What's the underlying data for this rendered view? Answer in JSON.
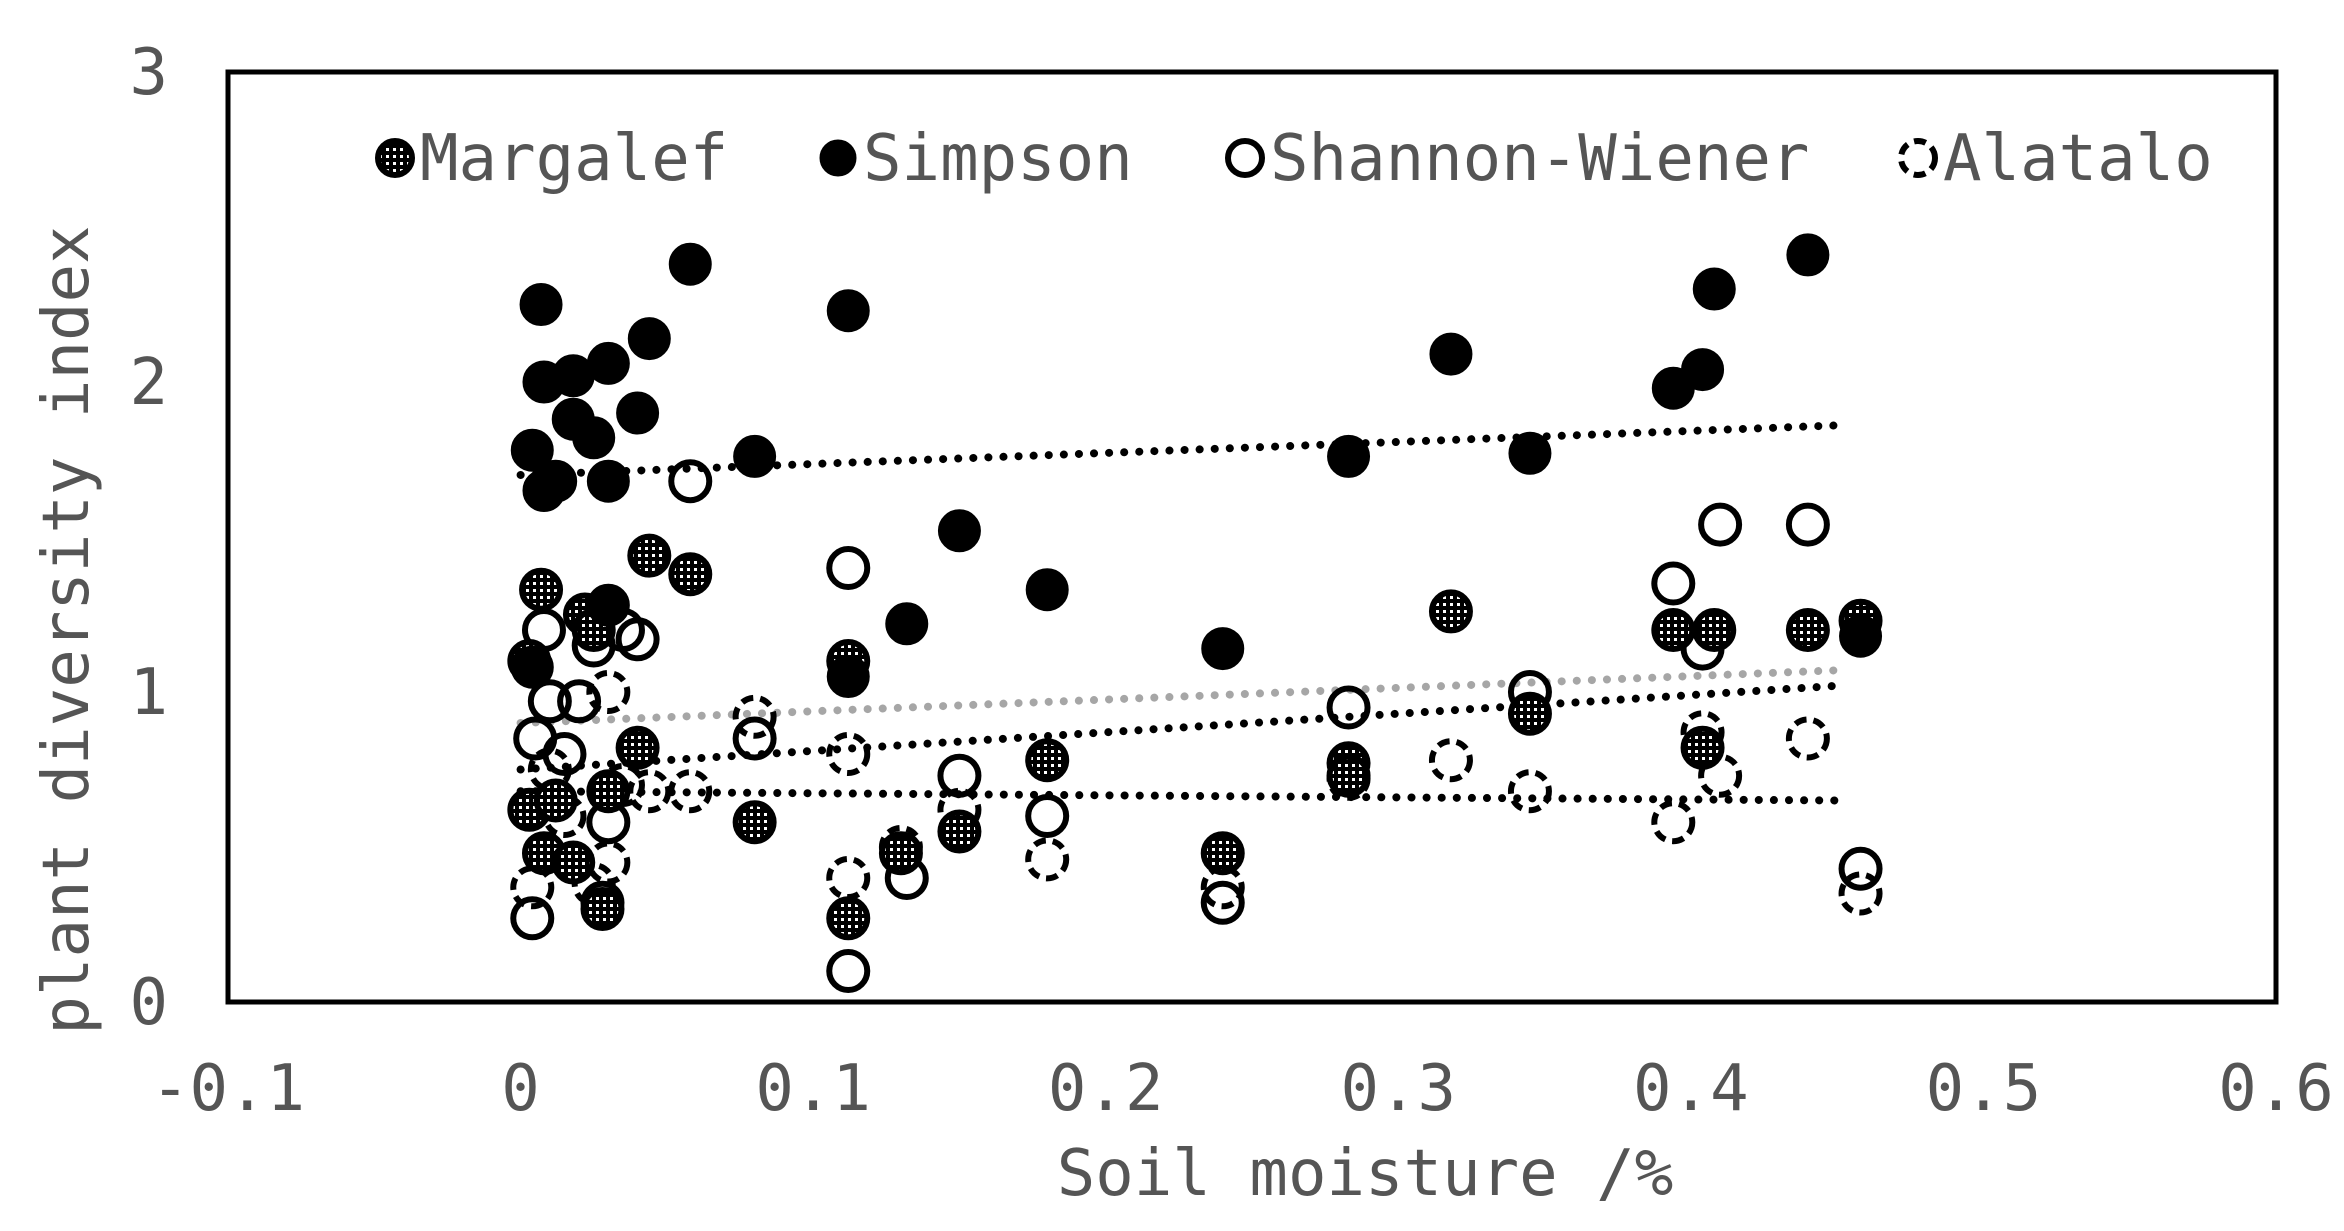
{
  "chart_data": {
    "type": "scatter",
    "title": "",
    "xlabel": "Soil moisture /%",
    "ylabel": "plant diversity index",
    "xlim": [
      -0.1,
      0.6
    ],
    "ylim": [
      0,
      3
    ],
    "x_ticks": [
      -0.1,
      0,
      0.1,
      0.2,
      0.3,
      0.4,
      0.5,
      0.6
    ],
    "y_ticks": [
      0,
      1,
      2,
      3
    ],
    "x_tick_labels": [
      "-0.1",
      "0",
      "0.1",
      "0.2",
      "0.3",
      "0.4",
      "0.5",
      "0.6"
    ],
    "y_tick_labels": [
      "0",
      "1",
      "2",
      "3"
    ],
    "grid": false,
    "legend_position": "top",
    "series": [
      {
        "name": "Margalef",
        "marker": "dotted-fill",
        "trend_color": "#000000",
        "points": [
          [
            0.003,
            1.1
          ],
          [
            0.007,
            1.33
          ],
          [
            0.003,
            0.62
          ],
          [
            0.008,
            0.48
          ],
          [
            0.012,
            0.65
          ],
          [
            0.018,
            0.45
          ],
          [
            0.022,
            1.25
          ],
          [
            0.025,
            1.2
          ],
          [
            0.028,
            0.3
          ],
          [
            0.03,
            0.68
          ],
          [
            0.04,
            0.82
          ],
          [
            0.044,
            1.44
          ],
          [
            0.058,
            1.38
          ],
          [
            0.08,
            0.58
          ],
          [
            0.112,
            1.1
          ],
          [
            0.112,
            0.27
          ],
          [
            0.13,
            0.48
          ],
          [
            0.15,
            0.55
          ],
          [
            0.18,
            0.78
          ],
          [
            0.24,
            0.48
          ],
          [
            0.283,
            0.77
          ],
          [
            0.283,
            0.73
          ],
          [
            0.318,
            1.26
          ],
          [
            0.345,
            0.93
          ],
          [
            0.394,
            1.2
          ],
          [
            0.404,
            0.82
          ],
          [
            0.408,
            1.2
          ],
          [
            0.44,
            1.2
          ],
          [
            0.458,
            1.23
          ]
        ],
        "trend": {
          "x": [
            0,
            0.45
          ],
          "y": [
            0.75,
            1.02
          ]
        }
      },
      {
        "name": "Simpson",
        "marker": "filled",
        "trend_color": "#000000",
        "points": [
          [
            0.004,
            1.78
          ],
          [
            0.007,
            2.25
          ],
          [
            0.008,
            2.0
          ],
          [
            0.008,
            1.65
          ],
          [
            0.012,
            1.68
          ],
          [
            0.018,
            2.02
          ],
          [
            0.018,
            1.88
          ],
          [
            0.025,
            1.82
          ],
          [
            0.03,
            2.06
          ],
          [
            0.03,
            1.68
          ],
          [
            0.04,
            1.9
          ],
          [
            0.044,
            2.14
          ],
          [
            0.058,
            2.38
          ],
          [
            0.08,
            1.76
          ],
          [
            0.112,
            2.23
          ],
          [
            0.112,
            1.05
          ],
          [
            0.004,
            1.08
          ],
          [
            0.03,
            1.28
          ],
          [
            0.132,
            1.22
          ],
          [
            0.15,
            1.52
          ],
          [
            0.18,
            1.33
          ],
          [
            0.24,
            1.14
          ],
          [
            0.283,
            1.76
          ],
          [
            0.318,
            2.09
          ],
          [
            0.345,
            1.77
          ],
          [
            0.394,
            1.98
          ],
          [
            0.404,
            2.04
          ],
          [
            0.408,
            2.3
          ],
          [
            0.44,
            2.41
          ],
          [
            0.458,
            1.18
          ]
        ],
        "trend": {
          "x": [
            0,
            0.45
          ],
          "y": [
            1.7,
            1.86
          ]
        }
      },
      {
        "name": "Shannon-Wiener",
        "marker": "open",
        "trend_color": "#a6a6a6",
        "points": [
          [
            0.004,
            0.27
          ],
          [
            0.005,
            0.85
          ],
          [
            0.008,
            1.2
          ],
          [
            0.01,
            0.97
          ],
          [
            0.015,
            0.8
          ],
          [
            0.02,
            0.97
          ],
          [
            0.025,
            1.15
          ],
          [
            0.028,
            0.32
          ],
          [
            0.03,
            0.58
          ],
          [
            0.035,
            1.2
          ],
          [
            0.04,
            1.17
          ],
          [
            0.058,
            1.68
          ],
          [
            0.08,
            0.85
          ],
          [
            0.112,
            1.4
          ],
          [
            0.112,
            0.1
          ],
          [
            0.132,
            0.4
          ],
          [
            0.15,
            0.73
          ],
          [
            0.18,
            0.6
          ],
          [
            0.24,
            0.32
          ],
          [
            0.283,
            0.95
          ],
          [
            0.345,
            1.0
          ],
          [
            0.394,
            1.35
          ],
          [
            0.404,
            1.14
          ],
          [
            0.41,
            1.54
          ],
          [
            0.44,
            1.54
          ],
          [
            0.458,
            0.43
          ]
        ],
        "trend": {
          "x": [
            0,
            0.45
          ],
          "y": [
            0.9,
            1.07
          ]
        }
      },
      {
        "name": "Alatalo",
        "marker": "dashed",
        "trend_color": "#000000",
        "points": [
          [
            0.004,
            0.37
          ],
          [
            0.01,
            0.75
          ],
          [
            0.015,
            0.6
          ],
          [
            0.025,
            0.38
          ],
          [
            0.03,
            0.45
          ],
          [
            0.03,
            1.0
          ],
          [
            0.035,
            0.7
          ],
          [
            0.044,
            0.68
          ],
          [
            0.058,
            0.68
          ],
          [
            0.08,
            0.92
          ],
          [
            0.112,
            0.8
          ],
          [
            0.112,
            0.4
          ],
          [
            0.13,
            0.5
          ],
          [
            0.15,
            0.62
          ],
          [
            0.18,
            0.46
          ],
          [
            0.24,
            0.37
          ],
          [
            0.283,
            0.72
          ],
          [
            0.318,
            0.78
          ],
          [
            0.345,
            0.68
          ],
          [
            0.394,
            0.58
          ],
          [
            0.404,
            0.87
          ],
          [
            0.41,
            0.73
          ],
          [
            0.44,
            0.85
          ],
          [
            0.458,
            0.35
          ]
        ],
        "trend": {
          "x": [
            0,
            0.45
          ],
          "y": [
            0.68,
            0.65
          ]
        }
      }
    ]
  }
}
